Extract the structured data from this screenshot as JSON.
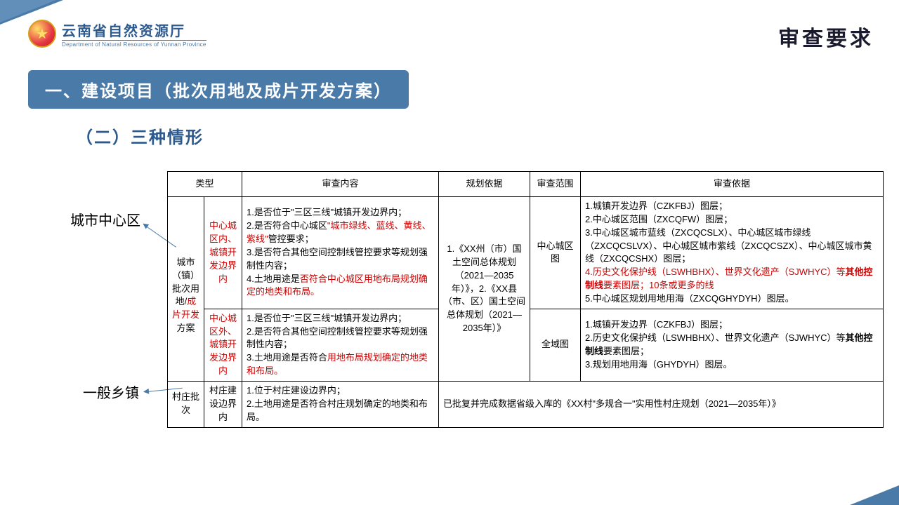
{
  "header": {
    "dept_zh": "云南省自然资源厅",
    "dept_en": "Department of Natural Resources of Yunnan Province"
  },
  "page_title": "审查要求",
  "section_title": "一、建设项目（批次用地及成片开发方案）",
  "subsection_title": "（二）三种情形",
  "annotations": {
    "top": "城市中心区",
    "bottom": "一般乡镇"
  },
  "colors": {
    "primary": "#4a7aa8",
    "text_red": "#cc0000",
    "heading_blue": "#2d5a8e"
  },
  "table": {
    "headers": [
      "类型",
      "审查内容",
      "规划依据",
      "审查范围",
      "审查依据"
    ],
    "type_col": {
      "group1_black": "城市（镇）批次用地/",
      "group1_red": "成片开发",
      "group1_black2": "方案",
      "group2": "村庄批次"
    },
    "rows": [
      {
        "subtype": "中心城区内、城镇开发边界内",
        "content_parts": [
          {
            "t": "1.是否位于\"三区三线\"城镇开发边界内；\n2.是否符合中心城区",
            "red": false
          },
          {
            "t": "\"城市绿线、蓝线、黄线、紫线\"",
            "red": true
          },
          {
            "t": "管控要求；\n3.是否符合其他空间控制线管控要求等规划强制性内容；\n4.土地用途是",
            "red": false
          },
          {
            "t": "否符合中心城区用地布局规划确定的地类和布局。",
            "red": true
          }
        ],
        "scope": "中心城区图",
        "evidence_parts": [
          {
            "t": "1.城镇开发边界（CZKFBJ）图层；\n2.中心城区范围（ZXCQFW）图层；\n3.中心城区城市蓝线（ZXCQCSLX）、中心城区城市绿线（ZXCQCSLVX）、中心城区城市紫线（ZXCQCSZX）、中心城区城市黄线（ZXCQCSHX）图层；\n",
            "red": false
          },
          {
            "t": "4.历史文化保护线（LSWHBHX）、世界文化遗产（SJWHYC）等",
            "red": true
          },
          {
            "t": "其他控制线",
            "red": true,
            "bold": true
          },
          {
            "t": "要素图层；10条或更多的线\n",
            "red": true
          },
          {
            "t": "5.中心城区规划用地用海（ZXCQGHYDYH）图层。",
            "red": false
          }
        ]
      },
      {
        "subtype": "中心城区外、城镇开发边界内",
        "content_parts": [
          {
            "t": "1.是否位于\"三区三线\"城镇开发边界内；\n2.是否符合其他空间控制线管控要求等规划强制性内容；\n3.土地用途是否符合",
            "red": false
          },
          {
            "t": "用地布局规划确定的地类和布局。",
            "red": true
          }
        ],
        "scope": "全域图",
        "evidence_parts": [
          {
            "t": "1.城镇开发边界（CZKFBJ）图层；\n2.历史文化保护线（LSWHBHX）、世界文化遗产（SJWHYC）等",
            "red": false
          },
          {
            "t": "其他控制线",
            "red": false,
            "bold": true
          },
          {
            "t": "要素图层；\n3.规划用地用海（GHYDYH）图层。",
            "red": false
          }
        ]
      },
      {
        "subtype": "村庄建设边界内",
        "content": "1.位于村庄建设边界内；\n2.土地用途是否符合村庄规划确定的地类和布局。",
        "basis_evidence": "已批复并完成数据省级入库的《XX村\"多规合一\"实用性村庄规划（2021—2035年）》"
      }
    ],
    "planning_basis": "1.《XX州（市）国土空间总体规划（2021—2035年）》，2.《XX县（市、区）国土空间总体规划（2021—2035年）》"
  }
}
